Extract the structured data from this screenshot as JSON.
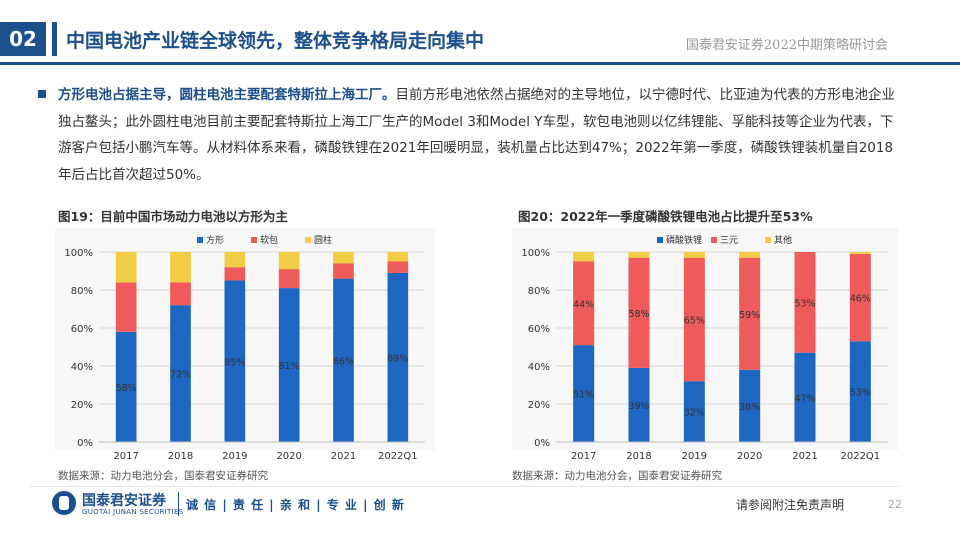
{
  "header": {
    "section_number": "02",
    "title": "中国电池产业链全球领先，整体竞争格局走向集中",
    "org": "国泰君安证券2022中期策略研讨会"
  },
  "paragraph": {
    "bold_lead": "方形电池占据主导，圆柱电池主要配套特斯拉上海工厂。",
    "body": "目前方形电池依然占据绝对的主导地位，以宁德时代、比亚迪为代表的方形电池企业独占鳌头；此外圆柱电池目前主要配套特斯拉上海工厂生产的Model 3和Model Y车型，软包电池则以亿纬锂能、孚能科技等企业为代表，下游客户包括小鹏汽车等。从材料体系来看，磷酸铁锂在2021年回暖明显，装机量占比达到47%；2022年第一季度，磷酸铁锂装机量自2018年后占比首次超过50%。"
  },
  "charts": {
    "left": {
      "title": "图19：目前中国市场动力电池以方形为主",
      "source": "数据来源：动力电池分会，国泰君安证券研究"
    },
    "right": {
      "title": "图20：2022年一季度磷酸铁锂电池占比提升至53%",
      "source": "数据来源：动力电池分会，国泰君安证券研究"
    }
  },
  "chart_data": [
    {
      "type": "bar",
      "stacked": true,
      "title": "图19：目前中国市场动力电池以方形为主",
      "categories": [
        "2017",
        "2018",
        "2019",
        "2020",
        "2021",
        "2022Q1"
      ],
      "series": [
        {
          "name": "方形",
          "color": "#1f66c2",
          "values": [
            58,
            72,
            85,
            81,
            86,
            89
          ],
          "labels": [
            "58%",
            "72%",
            "85%",
            "81%",
            "86%",
            "89%"
          ]
        },
        {
          "name": "软包",
          "color": "#ef5b5b",
          "values": [
            26,
            12,
            7,
            10,
            8,
            6
          ]
        },
        {
          "name": "圆柱",
          "color": "#f0cd45",
          "values": [
            16,
            16,
            8,
            9,
            6,
            5
          ]
        }
      ],
      "y_ticks": [
        "0%",
        "20%",
        "40%",
        "60%",
        "80%",
        "100%"
      ],
      "ylim": [
        0,
        100
      ],
      "grid": true,
      "legend": "top-center"
    },
    {
      "type": "bar",
      "stacked": true,
      "title": "图20：2022年一季度磷酸铁锂电池占比提升至53%",
      "categories": [
        "2017",
        "2018",
        "2019",
        "2020",
        "2021",
        "2022Q1"
      ],
      "series": [
        {
          "name": "磷酸铁锂",
          "color": "#1f66c2",
          "values": [
            51,
            39,
            32,
            38,
            47,
            53
          ],
          "labels": [
            "51%",
            "39%",
            "32%",
            "38%",
            "47%",
            "53%"
          ]
        },
        {
          "name": "三元",
          "color": "#ef5b5b",
          "values": [
            44,
            58,
            65,
            59,
            53,
            46
          ],
          "labels": [
            "44%",
            "58%",
            "65%",
            "59%",
            "53%",
            "46%"
          ]
        },
        {
          "name": "其他",
          "color": "#f0cd45",
          "values": [
            5,
            3,
            3,
            3,
            0,
            1
          ]
        }
      ],
      "y_ticks": [
        "0%",
        "20%",
        "40%",
        "60%",
        "80%",
        "100%"
      ],
      "ylim": [
        0,
        100
      ],
      "grid": true,
      "legend": "top-center"
    }
  ],
  "footer": {
    "logo_cn": "国泰君安证券",
    "logo_en": "GUOTAI JUNAN SECURITIES",
    "slogan": "诚 信 | 责 任 | 亲 和 | 专 业 | 创 新",
    "disclaimer": "请参阅附注免责声明",
    "page": "22"
  },
  "colors": {
    "brand": "#1d4f8c",
    "blue": "#1f66c2",
    "red": "#ef5b5b",
    "yellow": "#f0cd45"
  }
}
